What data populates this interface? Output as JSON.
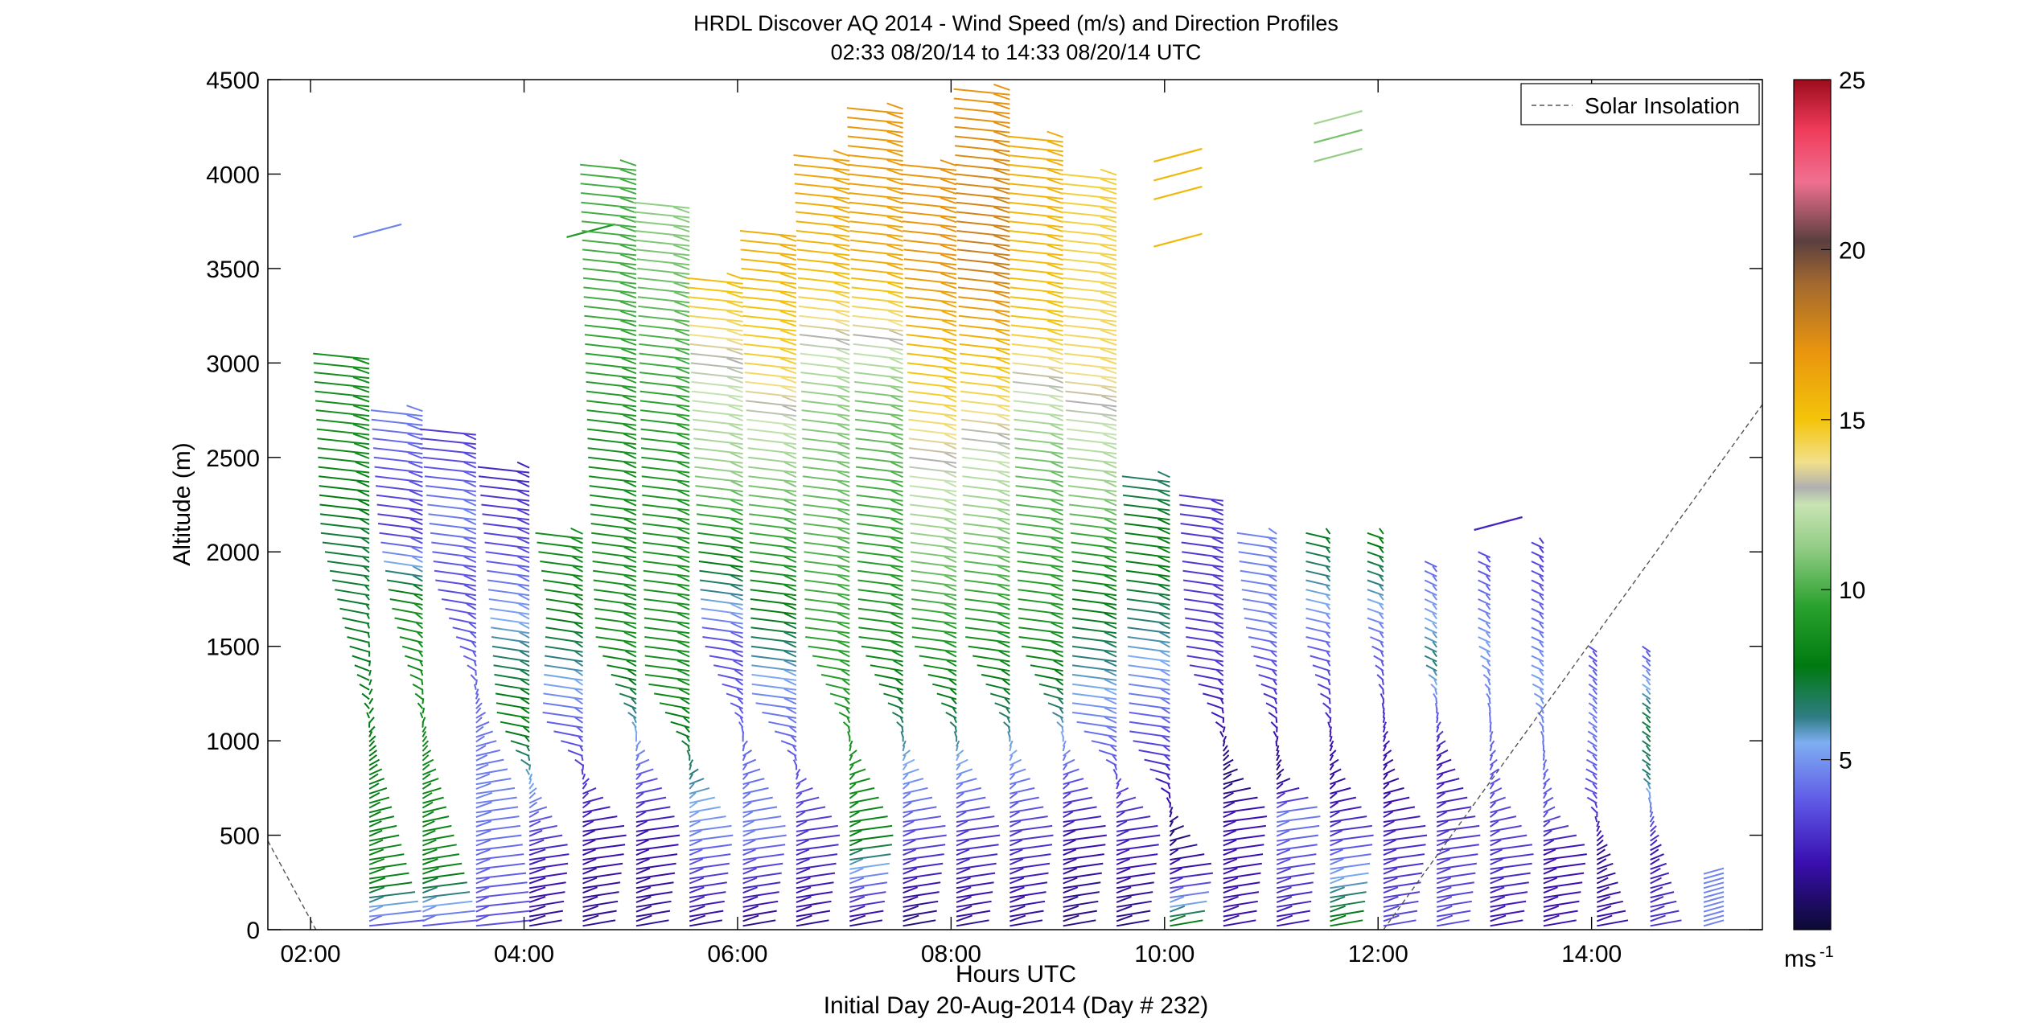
{
  "chart_data": {
    "type": "wind-barb-profiles",
    "title": "HRDL Discover AQ 2014 - Wind Speed (m/s) and Direction Profiles",
    "subtitle": "02:33 08/20/14 to 14:33 08/20/14  UTC",
    "xlabel": "Hours UTC",
    "xlabel2": "Initial Day 20-Aug-2014 (Day # 232)",
    "ylabel": "Altitude (m)",
    "xlim": [
      1.6,
      15.6
    ],
    "ylim": [
      0,
      4500
    ],
    "x_ticks": [
      2,
      4,
      6,
      8,
      10,
      12,
      14
    ],
    "x_tick_labels": [
      "02:00",
      "04:00",
      "06:00",
      "08:00",
      "10:00",
      "12:00",
      "14:00"
    ],
    "y_ticks": [
      0,
      500,
      1000,
      1500,
      2000,
      2500,
      3000,
      3500,
      4000,
      4500
    ],
    "y_tick_labels": [
      "0",
      "500",
      "1000",
      "1500",
      "2000",
      "2500",
      "3000",
      "3500",
      "4000",
      "4500"
    ],
    "legend": {
      "label": "Solar Insolation",
      "placement": "top-right"
    },
    "solar_insolation_series": [
      {
        "x": [
          1.6,
          2.05
        ],
        "y": [
          470,
          0
        ]
      },
      {
        "x": [
          12.05,
          15.6
        ],
        "y": [
          0,
          2780
        ]
      }
    ],
    "colorbar": {
      "unit_label": "ms",
      "unit_exponent": "-1",
      "range": [
        0,
        25
      ],
      "ticks": [
        5,
        10,
        15,
        20,
        25
      ],
      "tick_labels": [
        "5",
        "10",
        "15",
        "20",
        "25"
      ]
    },
    "profiles": [
      {
        "time": 2.55,
        "top": 3030,
        "uppers": [
          [
            3700,
            4.5
          ]
        ],
        "segs": [
          [
            0,
            3.5,
            70,
            15
          ],
          [
            260,
            7.5,
            50,
            20
          ],
          [
            2050,
            6.5,
            -60,
            -10
          ],
          [
            2600,
            8,
            -65,
            -20
          ],
          [
            3030,
            8,
            -70,
            -20
          ]
        ]
      },
      {
        "time": 3.05,
        "top": 2760,
        "segs": [
          [
            0,
            3.5,
            70,
            15
          ],
          [
            300,
            7.5,
            50,
            20
          ],
          [
            1700,
            8,
            -40,
            -10
          ],
          [
            2100,
            3,
            -55,
            -15
          ],
          [
            2760,
            4.5,
            -65,
            -20
          ]
        ]
      },
      {
        "time": 3.55,
        "top": 2640,
        "segs": [
          [
            0,
            3.5,
            70,
            15
          ],
          [
            700,
            4.5,
            50,
            20
          ],
          [
            1800,
            3.5,
            -50,
            -15
          ],
          [
            2200,
            4.5,
            -60,
            -15
          ],
          [
            2640,
            3,
            -70,
            -15
          ]
        ]
      },
      {
        "time": 4.05,
        "top": 2460,
        "segs": [
          [
            0,
            1.5,
            40,
            20
          ],
          [
            400,
            2.5,
            50,
            20
          ],
          [
            1100,
            7.5,
            -40,
            -10
          ],
          [
            2000,
            3.5,
            -55,
            -15
          ],
          [
            2460,
            2.5,
            -65,
            -15
          ]
        ]
      },
      {
        "time": 4.55,
        "uppers": [
          [
            3700,
            8.5
          ]
        ],
        "top": 2100,
        "segs": [
          [
            0,
            1.5,
            40,
            20
          ],
          [
            500,
            2,
            55,
            15
          ],
          [
            1100,
            4,
            -50,
            -10
          ],
          [
            1700,
            7.5,
            -45,
            -10
          ],
          [
            2100,
            8,
            -60,
            -15
          ]
        ]
      },
      {
        "time": 5.05,
        "top": 4050,
        "segs": [
          [
            0,
            1.5,
            40,
            20
          ],
          [
            500,
            2,
            55,
            15
          ],
          [
            1500,
            8,
            -50,
            -15
          ],
          [
            2500,
            8,
            -60,
            -15
          ],
          [
            3300,
            9.5,
            -65,
            -20
          ],
          [
            4050,
            9.5,
            -70,
            -20
          ]
        ]
      },
      {
        "time": 5.55,
        "top": 3830,
        "segs": [
          [
            0,
            1.5,
            40,
            20
          ],
          [
            500,
            4.5,
            55,
            15
          ],
          [
            1300,
            8,
            -55,
            -15
          ],
          [
            2500,
            8.5,
            -60,
            -15
          ],
          [
            3500,
            10.5,
            -65,
            -20
          ],
          [
            3830,
            11,
            -70,
            -20
          ]
        ]
      },
      {
        "time": 6.05,
        "top": 3460,
        "segs": [
          [
            0,
            1.2,
            40,
            20
          ],
          [
            500,
            4.5,
            55,
            15
          ],
          [
            1500,
            3.5,
            -50,
            -15
          ],
          [
            2400,
            11,
            -60,
            -15
          ],
          [
            3000,
            13,
            -65,
            -20
          ],
          [
            3460,
            15.5,
            -70,
            -20
          ]
        ]
      },
      {
        "time": 6.55,
        "top": 3680,
        "segs": [
          [
            0,
            1.5,
            40,
            20
          ],
          [
            500,
            3,
            55,
            15
          ],
          [
            1200,
            4.5,
            -55,
            -15
          ],
          [
            2500,
            11.5,
            -60,
            -15
          ],
          [
            3000,
            14.5,
            -65,
            -20
          ],
          [
            3680,
            16,
            -70,
            -20
          ]
        ]
      },
      {
        "time": 7.05,
        "top": 4100,
        "segs": [
          [
            0,
            1.2,
            40,
            20
          ],
          [
            500,
            7.5,
            55,
            15
          ],
          [
            1500,
            9,
            -55,
            -15
          ],
          [
            2800,
            11,
            -60,
            -15
          ],
          [
            3500,
            15.5,
            -65,
            -20
          ],
          [
            4100,
            16.5,
            -70,
            -20
          ]
        ]
      },
      {
        "time": 7.55,
        "top": 4360,
        "segs": [
          [
            0,
            1,
            40,
            20
          ],
          [
            500,
            3.5,
            55,
            15
          ],
          [
            1500,
            8,
            -55,
            -15
          ],
          [
            2800,
            10.5,
            -60,
            -15
          ],
          [
            3500,
            16,
            -65,
            -20
          ],
          [
            4360,
            17,
            -70,
            -20
          ]
        ]
      },
      {
        "time": 8.05,
        "top": 4050,
        "segs": [
          [
            0,
            1.5,
            40,
            20
          ],
          [
            500,
            3,
            55,
            15
          ],
          [
            1500,
            8.5,
            -55,
            -15
          ],
          [
            2800,
            14.5,
            -60,
            -15
          ],
          [
            3500,
            17,
            -65,
            -20
          ],
          [
            4050,
            17,
            -70,
            -20
          ]
        ]
      },
      {
        "time": 8.55,
        "top": 4460,
        "segs": [
          [
            0,
            1.5,
            40,
            20
          ],
          [
            500,
            3,
            55,
            15
          ],
          [
            1500,
            8,
            -55,
            -15
          ],
          [
            2600,
            13,
            -60,
            -15
          ],
          [
            3500,
            18,
            -65,
            -20
          ],
          [
            4460,
            17,
            -70,
            -20
          ]
        ]
      },
      {
        "time": 9.05,
        "top": 4200,
        "segs": [
          [
            0,
            1.2,
            40,
            20
          ],
          [
            500,
            2,
            55,
            15
          ],
          [
            1500,
            8,
            -55,
            -15
          ],
          [
            2500,
            10.5,
            -60,
            -15
          ],
          [
            3200,
            15,
            -65,
            -20
          ],
          [
            4200,
            16,
            -70,
            -20
          ]
        ]
      },
      {
        "time": 9.55,
        "top": 4010,
        "segs": [
          [
            0,
            1.2,
            40,
            20
          ],
          [
            500,
            2.5,
            55,
            15
          ],
          [
            1100,
            4.5,
            -55,
            -15
          ],
          [
            1900,
            8,
            -55,
            -15
          ],
          [
            2300,
            11,
            -60,
            -15
          ],
          [
            3000,
            14,
            -65,
            -20
          ],
          [
            4010,
            14.5,
            -70,
            -20
          ]
        ]
      },
      {
        "time": 10.05,
        "uppers": [
          [
            3650,
            15.5
          ],
          [
            3900,
            15.5
          ],
          [
            4000,
            15.5
          ],
          [
            4100,
            15.5
          ]
        ],
        "top": 2410,
        "segs": [
          [
            0,
            7.5,
            40,
            20
          ],
          [
            300,
            2,
            55,
            15
          ],
          [
            500,
            1,
            20,
            5
          ],
          [
            1000,
            3.5,
            -50,
            -10
          ],
          [
            2000,
            7.5,
            -55,
            -15
          ],
          [
            2410,
            6,
            -60,
            -15
          ]
        ]
      },
      {
        "time": 10.55,
        "top": 2280,
        "segs": [
          [
            0,
            2,
            40,
            20
          ],
          [
            600,
            2,
            55,
            15
          ],
          [
            800,
            1,
            20,
            10
          ],
          [
            1400,
            3,
            -45,
            -10
          ],
          [
            2280,
            3,
            -55,
            -15
          ]
        ]
      },
      {
        "time": 11.05,
        "top": 2100,
        "segs": [
          [
            0,
            2,
            40,
            20
          ],
          [
            600,
            4.5,
            55,
            15
          ],
          [
            800,
            1,
            10,
            5
          ],
          [
            1600,
            4.5,
            -40,
            -10
          ],
          [
            2100,
            4.5,
            -50,
            -10
          ]
        ]
      },
      {
        "time": 11.55,
        "uppers": [
          [
            4100,
            11
          ],
          [
            4200,
            10.5
          ],
          [
            4300,
            11.5
          ]
        ],
        "top": 2100,
        "segs": [
          [
            0,
            7.5,
            40,
            20
          ],
          [
            500,
            3,
            55,
            15
          ],
          [
            800,
            1.5,
            15,
            5
          ],
          [
            1500,
            4,
            -30,
            -5
          ],
          [
            2100,
            7,
            -30,
            -5
          ]
        ]
      },
      {
        "time": 12.05,
        "top": 2100,
        "segs": [
          [
            0,
            3.5,
            40,
            20
          ],
          [
            500,
            2.5,
            55,
            15
          ],
          [
            800,
            1.5,
            15,
            5
          ],
          [
            1600,
            4.5,
            -20,
            -5
          ],
          [
            2100,
            7.5,
            -20,
            -5
          ]
        ]
      },
      {
        "time": 12.55,
        "top": 1920,
        "segs": [
          [
            0,
            3.5,
            40,
            20
          ],
          [
            500,
            3,
            55,
            15
          ],
          [
            900,
            2,
            15,
            5
          ],
          [
            1400,
            6,
            -15,
            -5
          ],
          [
            1920,
            4,
            -15,
            -5
          ]
        ]
      },
      {
        "time": 13.05,
        "uppers": [
          [
            2150,
            2.5
          ]
        ],
        "top": 1970,
        "segs": [
          [
            0,
            2,
            40,
            20
          ],
          [
            400,
            3,
            55,
            15
          ],
          [
            700,
            3.5,
            15,
            5
          ],
          [
            1500,
            5,
            -15,
            -5
          ],
          [
            1970,
            3.5,
            -15,
            -5
          ]
        ]
      },
      {
        "time": 13.55,
        "top": 2060,
        "segs": [
          [
            0,
            2,
            40,
            20
          ],
          [
            400,
            2,
            55,
            15
          ],
          [
            600,
            3.5,
            15,
            5
          ],
          [
            1300,
            5,
            -15,
            -5
          ],
          [
            2060,
            3,
            -15,
            -5
          ]
        ]
      },
      {
        "time": 14.05,
        "top": 1490,
        "segs": [
          [
            0,
            2,
            40,
            20
          ],
          [
            400,
            1.5,
            15,
            10
          ],
          [
            700,
            3.5,
            -15,
            -5
          ],
          [
            1100,
            4.5,
            -10,
            -5
          ],
          [
            1490,
            3.5,
            -10,
            -5
          ]
        ]
      },
      {
        "time": 14.55,
        "top": 1490,
        "segs": [
          [
            0,
            3,
            40,
            20
          ],
          [
            400,
            2,
            15,
            10
          ],
          [
            800,
            6,
            -10,
            -5
          ],
          [
            1100,
            6.5,
            -10,
            -5
          ],
          [
            1490,
            3.5,
            -10,
            -5
          ]
        ]
      },
      {
        "time": 15.05,
        "top": 300,
        "segs": [
          [
            0,
            4.5,
            25,
            25
          ],
          [
            300,
            4.5,
            25,
            25
          ]
        ]
      }
    ]
  }
}
